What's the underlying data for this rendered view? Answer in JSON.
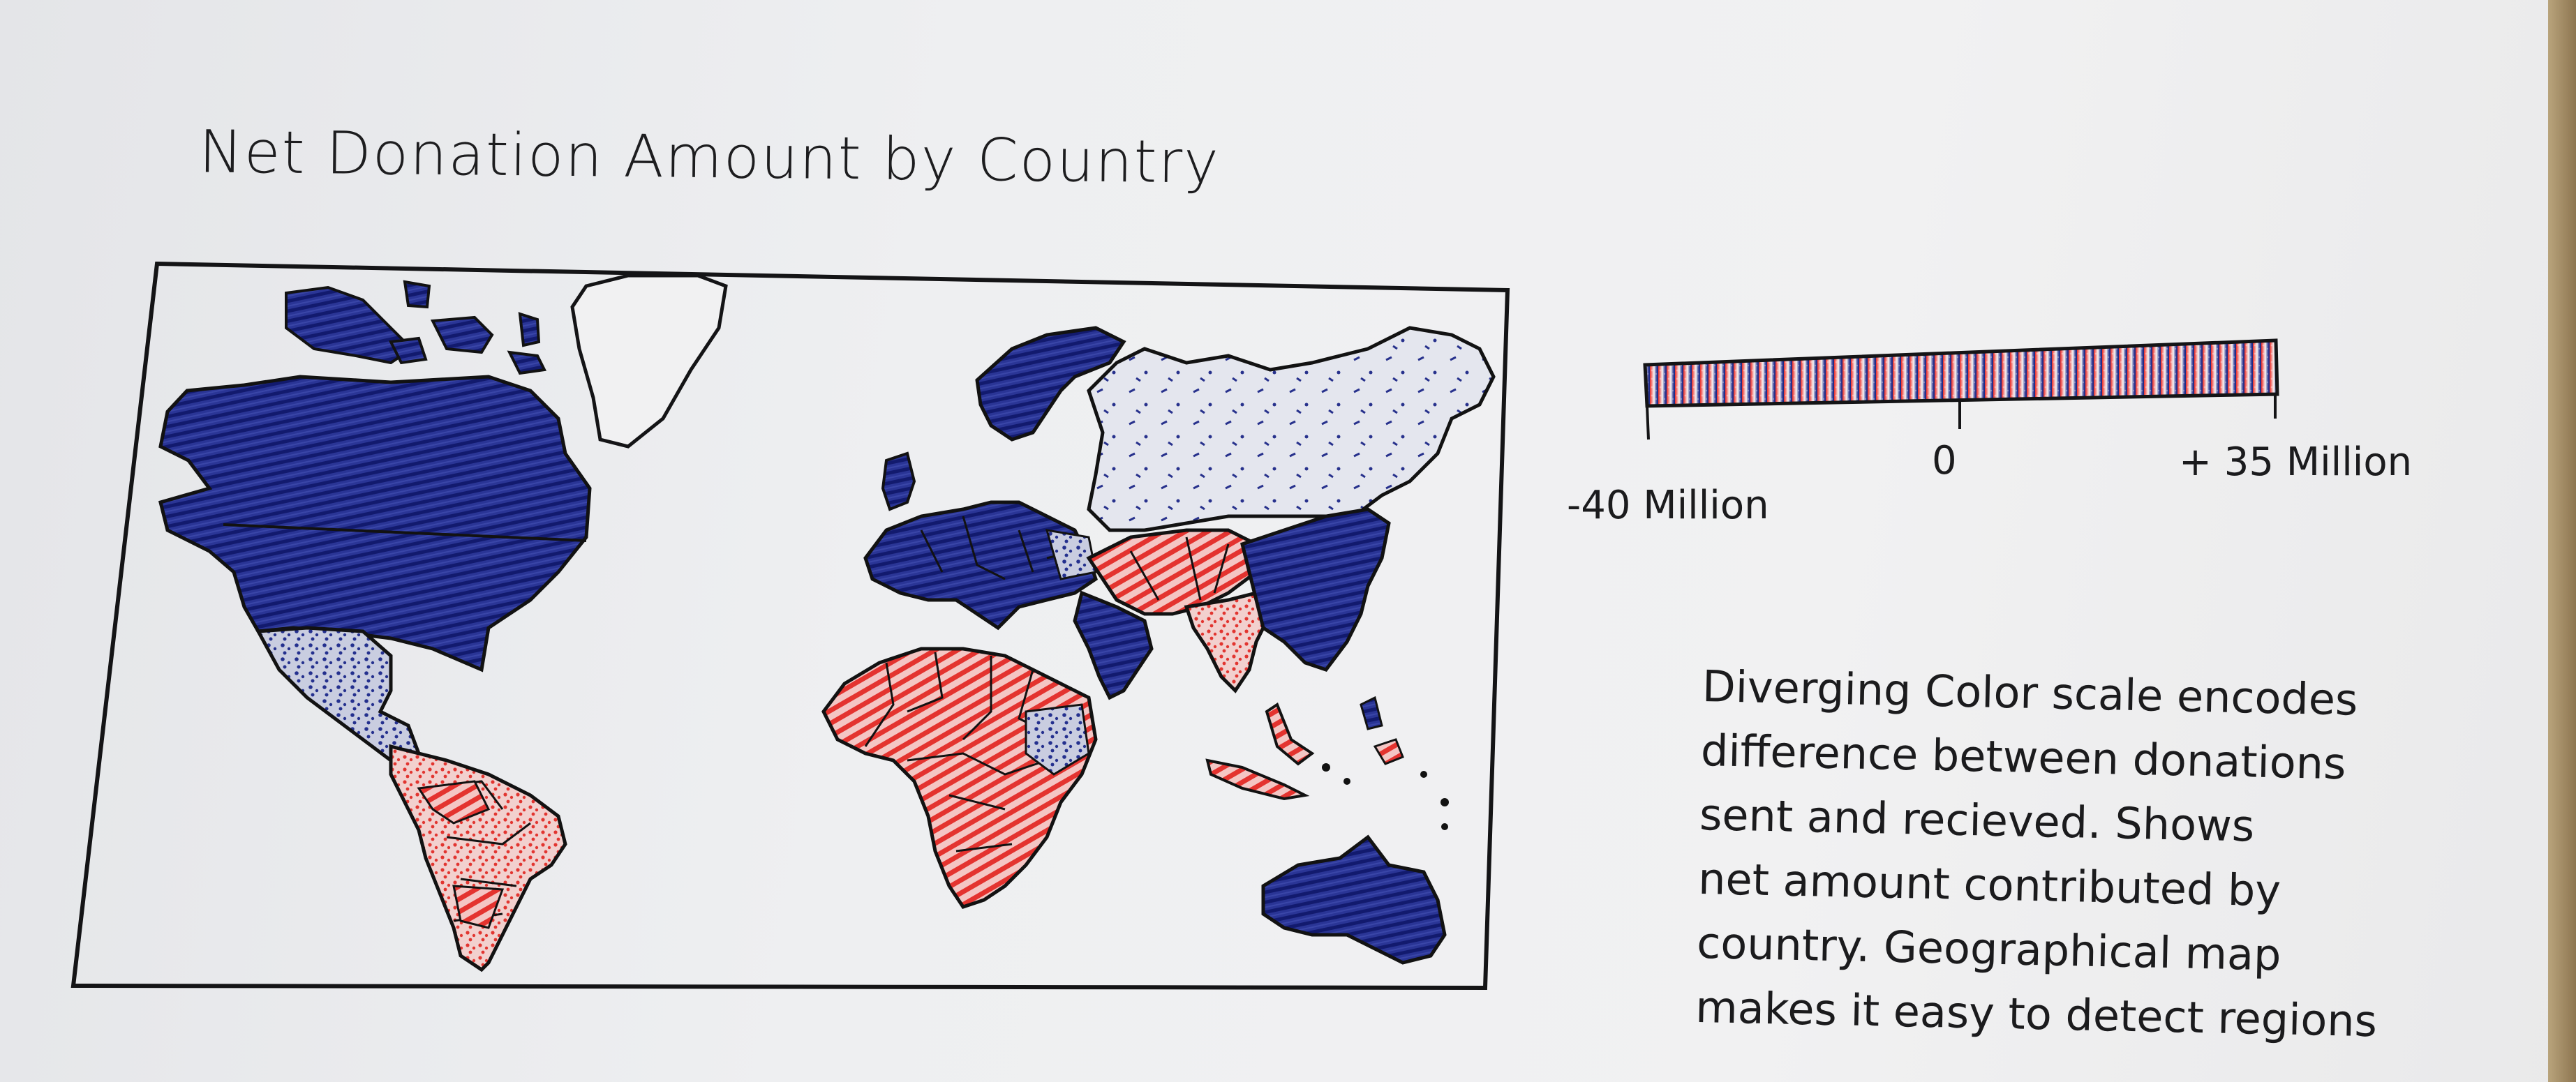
{
  "title": "Net Donation Amount by Country",
  "legend": {
    "min_label": "-40 Million",
    "mid_label": "0",
    "max_label": "+ 35 Million",
    "min_value": -40000000,
    "mid_value": 0,
    "max_value": 35000000,
    "negative_color": "#e8322e",
    "positive_color": "#1f2a8a",
    "neutral_color": "#f4f2f2"
  },
  "note_lines": [
    "Diverging Color scale encodes",
    "difference between donations",
    "sent and recieved. Shows",
    "net amount contributed by",
    "country. Geographical map",
    "makes it easy to detect regions"
  ],
  "region_colors": {
    "north-america": "positive",
    "greenland-arctic": "positive",
    "central-america": "mixed",
    "south-america": "negative",
    "europe": "positive",
    "russia": "neutral",
    "middle-east": "negative",
    "south-asia": "mixed",
    "china-east-asia": "positive",
    "africa": "negative",
    "southeast-asia": "negative",
    "australia": "positive"
  }
}
